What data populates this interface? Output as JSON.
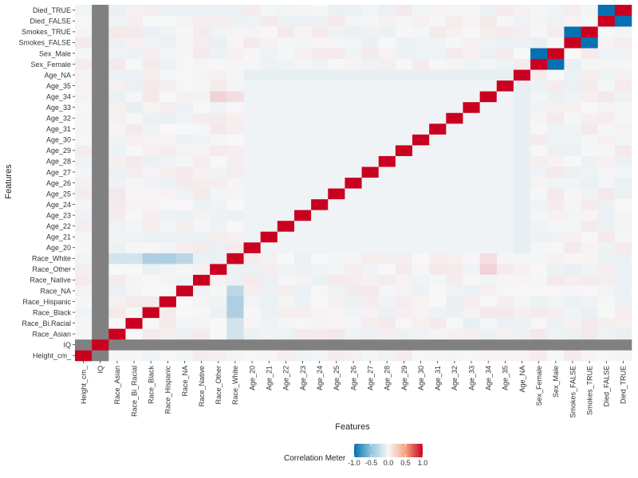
{
  "chart_data": {
    "type": "heatmap",
    "xlabel": "Features",
    "ylabel": "Features",
    "features": [
      "Height_cm_",
      "IQ",
      "Race_Asian",
      "Race_Bi.Racial",
      "Race_Black",
      "Race_Hispanic",
      "Race_NA",
      "Race_Native",
      "Race_Other",
      "Race_White",
      "Age_20",
      "Age_21",
      "Age_22",
      "Age_23",
      "Age_24",
      "Age_25",
      "Age_26",
      "Age_27",
      "Age_28",
      "Age_29",
      "Age_30",
      "Age_31",
      "Age_32",
      "Age_33",
      "Age_34",
      "Age_35",
      "Age_NA",
      "Sex_Female",
      "Sex_Male",
      "Smokes_FALSE",
      "Smokes_TRUE",
      "Died_FALSE",
      "Died_TRUE"
    ],
    "x_tick_labels": [
      "Height_cm_",
      "IQ",
      "Race_Asian",
      "Race_Bi_Racial",
      "Race_Black",
      "Race_Hispanic",
      "Race_NA",
      "Race_Native",
      "Race_Other",
      "Race_White",
      "Age_20",
      "Age_21",
      "Age_22",
      "Age_23",
      "Age_24",
      "Age_25",
      "Age_26",
      "Age_27",
      "Age_28",
      "Age_29",
      "Age_30",
      "Age_31",
      "Age_32",
      "Age_33",
      "Age_34",
      "Age_35",
      "Age_NA",
      "Sex_Female",
      "Sex_Male",
      "Smokes_FALSE",
      "Smokes_TRUE",
      "Died_FALSE",
      "Died_TRUE"
    ],
    "y_tick_labels": [
      "Height_cm_",
      "IQ",
      "Race_Asian",
      "Race_Bi.Racial",
      "Race_Black",
      "Race_Hispanic",
      "Race_NA",
      "Race_Native",
      "Race_Other",
      "Race_White",
      "Age_20",
      "Age_21",
      "Age_22",
      "Age_23",
      "Age_24",
      "Age_25",
      "Age_26",
      "Age_27",
      "Age_28",
      "Age_29",
      "Age_30",
      "Age_31",
      "Age_32",
      "Age_33",
      "Age_34",
      "Age_35",
      "Age_NA",
      "Sex_Female",
      "Sex_Male",
      "Smokes_FALSE",
      "Smokes_TRUE",
      "Died_FALSE",
      "Died_TRUE"
    ],
    "diagonal_value": 1.0,
    "missing_feature": "IQ",
    "missing_color": "#808080",
    "notable_correlations": [
      {
        "a": "Sex_Female",
        "b": "Sex_Male",
        "value": -1.0
      },
      {
        "a": "Smokes_FALSE",
        "b": "Smokes_TRUE",
        "value": -1.0
      },
      {
        "a": "Died_FALSE",
        "b": "Died_TRUE",
        "value": -1.0
      },
      {
        "a": "Race_White",
        "b": "Race_Asian",
        "value": -0.15
      },
      {
        "a": "Race_White",
        "b": "Race_Bi.Racial",
        "value": -0.15
      },
      {
        "a": "Race_White",
        "b": "Race_Black",
        "value": -0.3
      },
      {
        "a": "Race_White",
        "b": "Race_Hispanic",
        "value": -0.3
      },
      {
        "a": "Race_White",
        "b": "Race_NA",
        "value": -0.25
      },
      {
        "a": "Race_White",
        "b": "Race_Native",
        "value": -0.05
      },
      {
        "a": "Race_White",
        "b": "Race_Other",
        "value": -0.05
      },
      {
        "a": "Age_NA",
        "b": "Age_20..Age_35",
        "value": -0.05
      },
      {
        "a": "Age_34",
        "b": "Race_Other",
        "value": 0.15
      },
      {
        "a": "Age_34",
        "b": "Race_White",
        "value": 0.1
      }
    ],
    "color_scale": {
      "low": -1.0,
      "mid": 0.0,
      "high": 1.0,
      "low_color": "#0571b0",
      "mid_color": "#f7f7f7",
      "high_color": "#ca0020"
    },
    "legend": {
      "title": "Correlation Meter",
      "ticks": [
        "-1.0",
        "-0.5",
        "0.0",
        "0.5",
        "1.0"
      ],
      "tick_values": [
        -1.0,
        -0.5,
        0.0,
        0.5,
        1.0
      ],
      "position": "bottom"
    },
    "grid": false
  }
}
